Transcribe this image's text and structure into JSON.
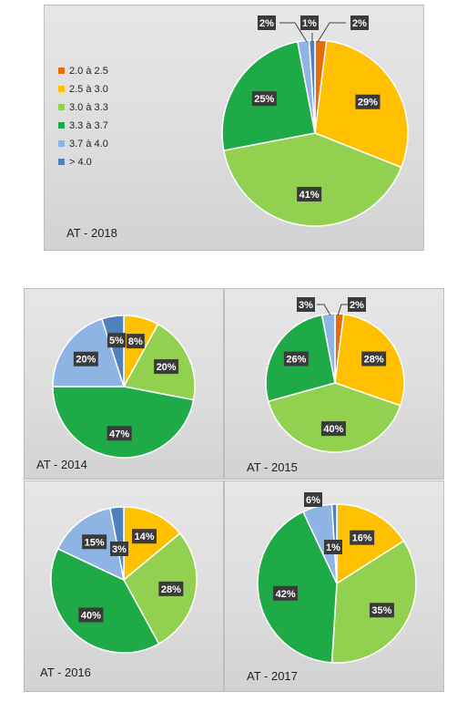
{
  "legend": {
    "items": [
      "2.0 à 2.5",
      "2.5 à 3.0",
      "3.0 à 3.3",
      "3.3 à 3.7",
      "3.7 à 4.0",
      "> 4.0"
    ],
    "colors": [
      "#E46C0A",
      "#FFC000",
      "#92D050",
      "#1FAA48",
      "#8EB4E3",
      "#4F81BD"
    ]
  },
  "chart_data": [
    {
      "type": "pie",
      "title": "AT - 2018",
      "categories": [
        "2.0 à 2.5",
        "2.5 à 3.0",
        "3.0 à 3.3",
        "3.3 à 3.7",
        "3.7 à 4.0",
        "> 4.0"
      ],
      "values": [
        2,
        29,
        41,
        25,
        2,
        1
      ],
      "labels": [
        "2%",
        "29%",
        "41%",
        "25%",
        "2%",
        "1%"
      ],
      "legend": "left"
    },
    {
      "type": "pie",
      "title": "AT - 2014",
      "categories": [
        "2.5 à 3.0",
        "3.0 à 3.3",
        "3.3 à 3.7",
        "3.7 à 4.0",
        "> 4.0"
      ],
      "values": [
        8,
        20,
        47,
        20,
        5
      ],
      "labels": [
        "8%",
        "20%",
        "47%",
        "20%",
        "5%"
      ]
    },
    {
      "type": "pie",
      "title": "AT - 2015",
      "categories": [
        "2.0 à 2.5",
        "2.5 à 3.0",
        "3.0 à 3.3",
        "3.3 à 3.7",
        "3.7 à 4.0"
      ],
      "values": [
        2,
        28,
        40,
        26,
        3
      ],
      "labels": [
        "2%",
        "28%",
        "40%",
        "26%",
        "3%"
      ]
    },
    {
      "type": "pie",
      "title": "AT - 2016",
      "categories": [
        "2.5 à 3.0",
        "3.0 à 3.3",
        "3.3 à 3.7",
        "3.7 à 4.0",
        "> 4.0"
      ],
      "values": [
        14,
        28,
        40,
        15,
        3
      ],
      "labels": [
        "14%",
        "28%",
        "40%",
        "15%",
        "3%"
      ]
    },
    {
      "type": "pie",
      "title": "AT - 2017",
      "categories": [
        "2.5 à 3.0",
        "3.0 à 3.3",
        "3.3 à 3.7",
        "3.7 à 4.0",
        "> 4.0"
      ],
      "values": [
        16,
        35,
        42,
        6,
        1
      ],
      "labels": [
        "16%",
        "35%",
        "42%",
        "6%",
        "1%"
      ]
    }
  ]
}
